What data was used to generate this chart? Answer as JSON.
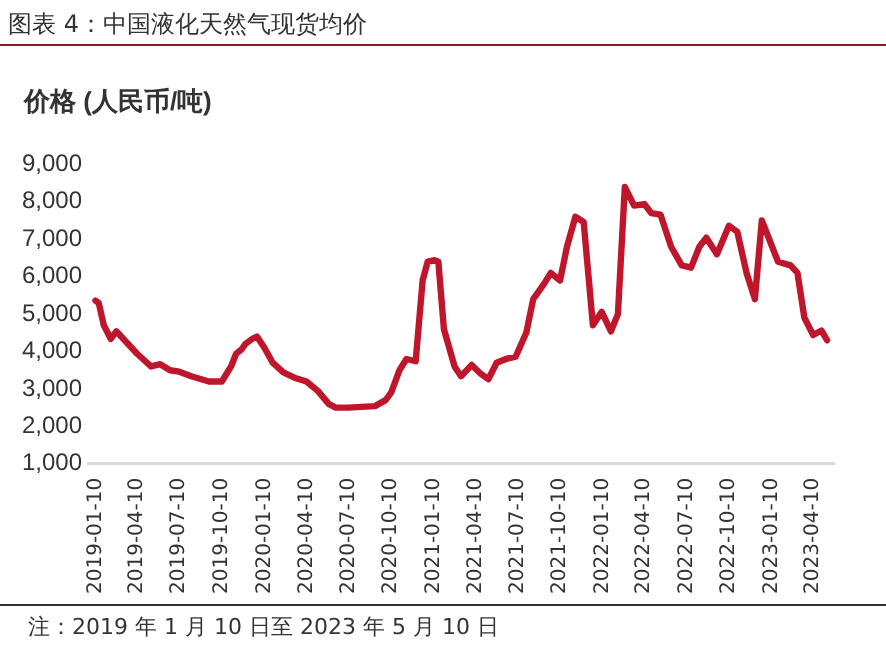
{
  "chart_data": {
    "type": "line",
    "title": "图表 4：中国液化天然气现货均价",
    "ylabel": "价格 (人民币/吨)",
    "annotations": [
      "注：2019 年 1 月 10 日至 2023 年 5 月 10 日"
    ],
    "x": [
      "2019-01-10",
      "2019-01-17",
      "2019-01-28",
      "2019-02-12",
      "2019-02-24",
      "2019-03-14",
      "2019-04-10",
      "2019-05-10",
      "2019-05-30",
      "2019-06-20",
      "2019-07-10",
      "2019-08-05",
      "2019-09-12",
      "2019-10-10",
      "2019-10-30",
      "2019-11-10",
      "2019-11-22",
      "2019-11-30",
      "2019-12-15",
      "2019-12-25",
      "2020-01-10",
      "2020-01-28",
      "2020-02-20",
      "2020-03-15",
      "2020-04-10",
      "2020-05-05",
      "2020-05-28",
      "2020-06-12",
      "2020-07-10",
      "2020-09-05",
      "2020-09-28",
      "2020-10-10",
      "2020-10-28",
      "2020-11-12",
      "2020-12-02",
      "2020-12-17",
      "2020-12-28",
      "2021-01-12",
      "2021-01-20",
      "2021-02-01",
      "2021-02-24",
      "2021-03-10",
      "2021-04-02",
      "2021-04-22",
      "2021-05-08",
      "2021-05-26",
      "2021-06-15",
      "2021-07-06",
      "2021-07-29",
      "2021-08-13",
      "2021-09-05",
      "2021-09-20",
      "2021-10-10",
      "2021-10-25",
      "2021-11-12",
      "2021-11-30",
      "2021-12-20",
      "2022-01-08",
      "2022-01-28",
      "2022-02-12",
      "2022-02-27",
      "2022-03-19",
      "2022-04-10",
      "2022-04-25",
      "2022-05-15",
      "2022-06-07",
      "2022-06-30",
      "2022-07-20",
      "2022-08-07",
      "2022-08-22",
      "2022-09-14",
      "2022-10-10",
      "2022-10-28",
      "2022-11-17",
      "2022-12-05",
      "2022-12-20",
      "2023-01-05",
      "2023-01-24",
      "2023-02-20",
      "2023-03-07",
      "2023-03-22",
      "2023-04-10",
      "2023-04-28",
      "2023-05-10"
    ],
    "series": [
      {
        "color": "#c0162c",
        "values": [
          5360,
          5300,
          4700,
          4340,
          4540,
          4300,
          3940,
          3600,
          3660,
          3500,
          3460,
          3340,
          3200,
          3200,
          3600,
          3940,
          4060,
          4200,
          4340,
          4400,
          4100,
          3700,
          3440,
          3300,
          3200,
          2940,
          2600,
          2500,
          2500,
          2540,
          2700,
          2900,
          3500,
          3800,
          3740,
          5900,
          6400,
          6440,
          6400,
          4600,
          3600,
          3340,
          3640,
          3400,
          3260,
          3700,
          3800,
          3860,
          4500,
          5400,
          5800,
          6100,
          5900,
          6800,
          7600,
          7460,
          4700,
          5060,
          4540,
          5000,
          8400,
          7900,
          7940,
          7700,
          7660,
          6800,
          6300,
          6240,
          6800,
          7040,
          6600,
          7360,
          7200,
          6100,
          5400,
          7500,
          7000,
          6400,
          6300,
          6100,
          4900,
          4440,
          4560,
          4300
        ]
      }
    ],
    "xlim": [
      "2018-12-25",
      "2023-05-25"
    ],
    "xticks": [
      "2019-01-10",
      "2019-04-10",
      "2019-07-10",
      "2019-10-10",
      "2020-01-10",
      "2020-04-10",
      "2020-07-10",
      "2020-10-10",
      "2021-01-10",
      "2021-04-10",
      "2021-07-10",
      "2021-10-10",
      "2022-01-10",
      "2022-04-10",
      "2022-07-10",
      "2022-10-10",
      "2023-01-10",
      "2023-04-10"
    ],
    "ylim": [
      1000,
      9000
    ],
    "yticks": [
      {
        "value": 1000,
        "label": "1,000"
      },
      {
        "value": 2000,
        "label": "2,000"
      },
      {
        "value": 3000,
        "label": "3,000"
      },
      {
        "value": 4000,
        "label": "4,000"
      },
      {
        "value": 5000,
        "label": "5,000"
      },
      {
        "value": 6000,
        "label": "6,000"
      },
      {
        "value": 7000,
        "label": "7,000"
      },
      {
        "value": 8000,
        "label": "8,000"
      },
      {
        "value": 9000,
        "label": "9,000"
      }
    ],
    "grid": false,
    "legend": false,
    "marker": "none",
    "line_style": "solid"
  }
}
